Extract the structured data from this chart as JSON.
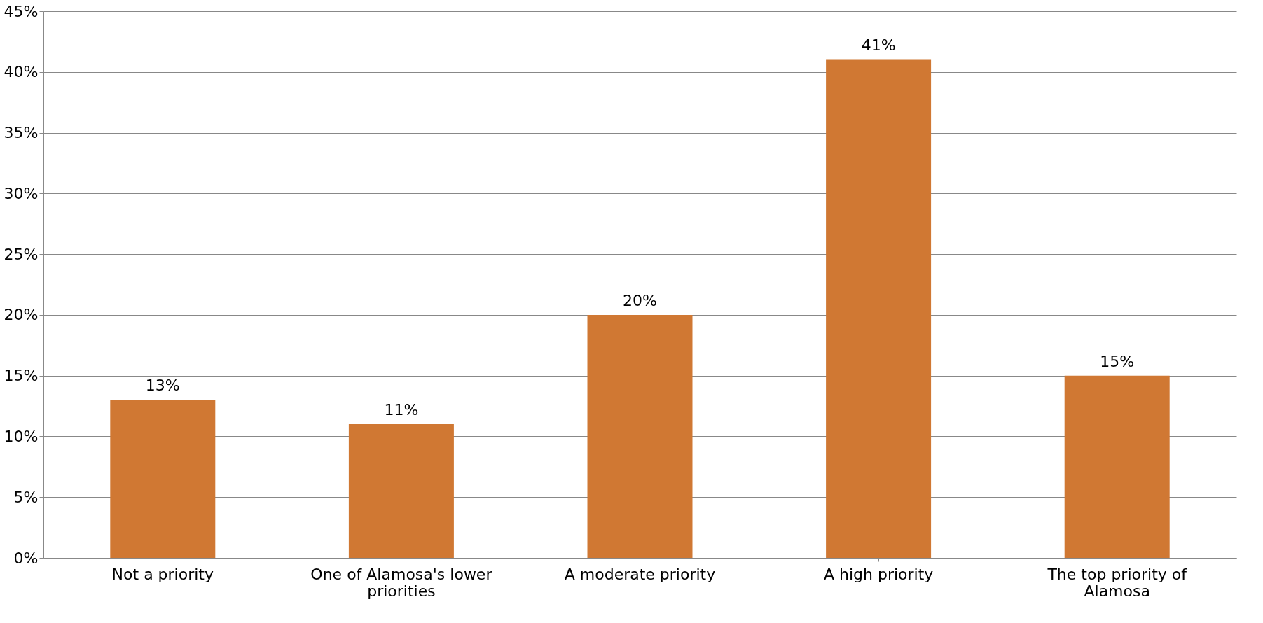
{
  "chart_data": {
    "type": "bar",
    "categories": [
      "Not a priority",
      "One of Alamosa's lower priorities",
      "A moderate priority",
      "A high priority",
      "The top priority of Alamosa"
    ],
    "values": [
      13,
      11,
      20,
      41,
      15
    ],
    "value_labels": [
      "13%",
      "11%",
      "20%",
      "41%",
      "15%"
    ],
    "color": "#d07833",
    "ylim": [
      0,
      45
    ],
    "yticks": [
      {
        "value": 0,
        "label": "0%"
      },
      {
        "value": 5,
        "label": "5%"
      },
      {
        "value": 10,
        "label": "10%"
      },
      {
        "value": 15,
        "label": "15%"
      },
      {
        "value": 20,
        "label": "20%"
      },
      {
        "value": 25,
        "label": "25%"
      },
      {
        "value": 30,
        "label": "30%"
      },
      {
        "value": 35,
        "label": "35%"
      },
      {
        "value": 40,
        "label": "40%"
      },
      {
        "value": 45,
        "label": "45%"
      }
    ],
    "grid": "y"
  }
}
